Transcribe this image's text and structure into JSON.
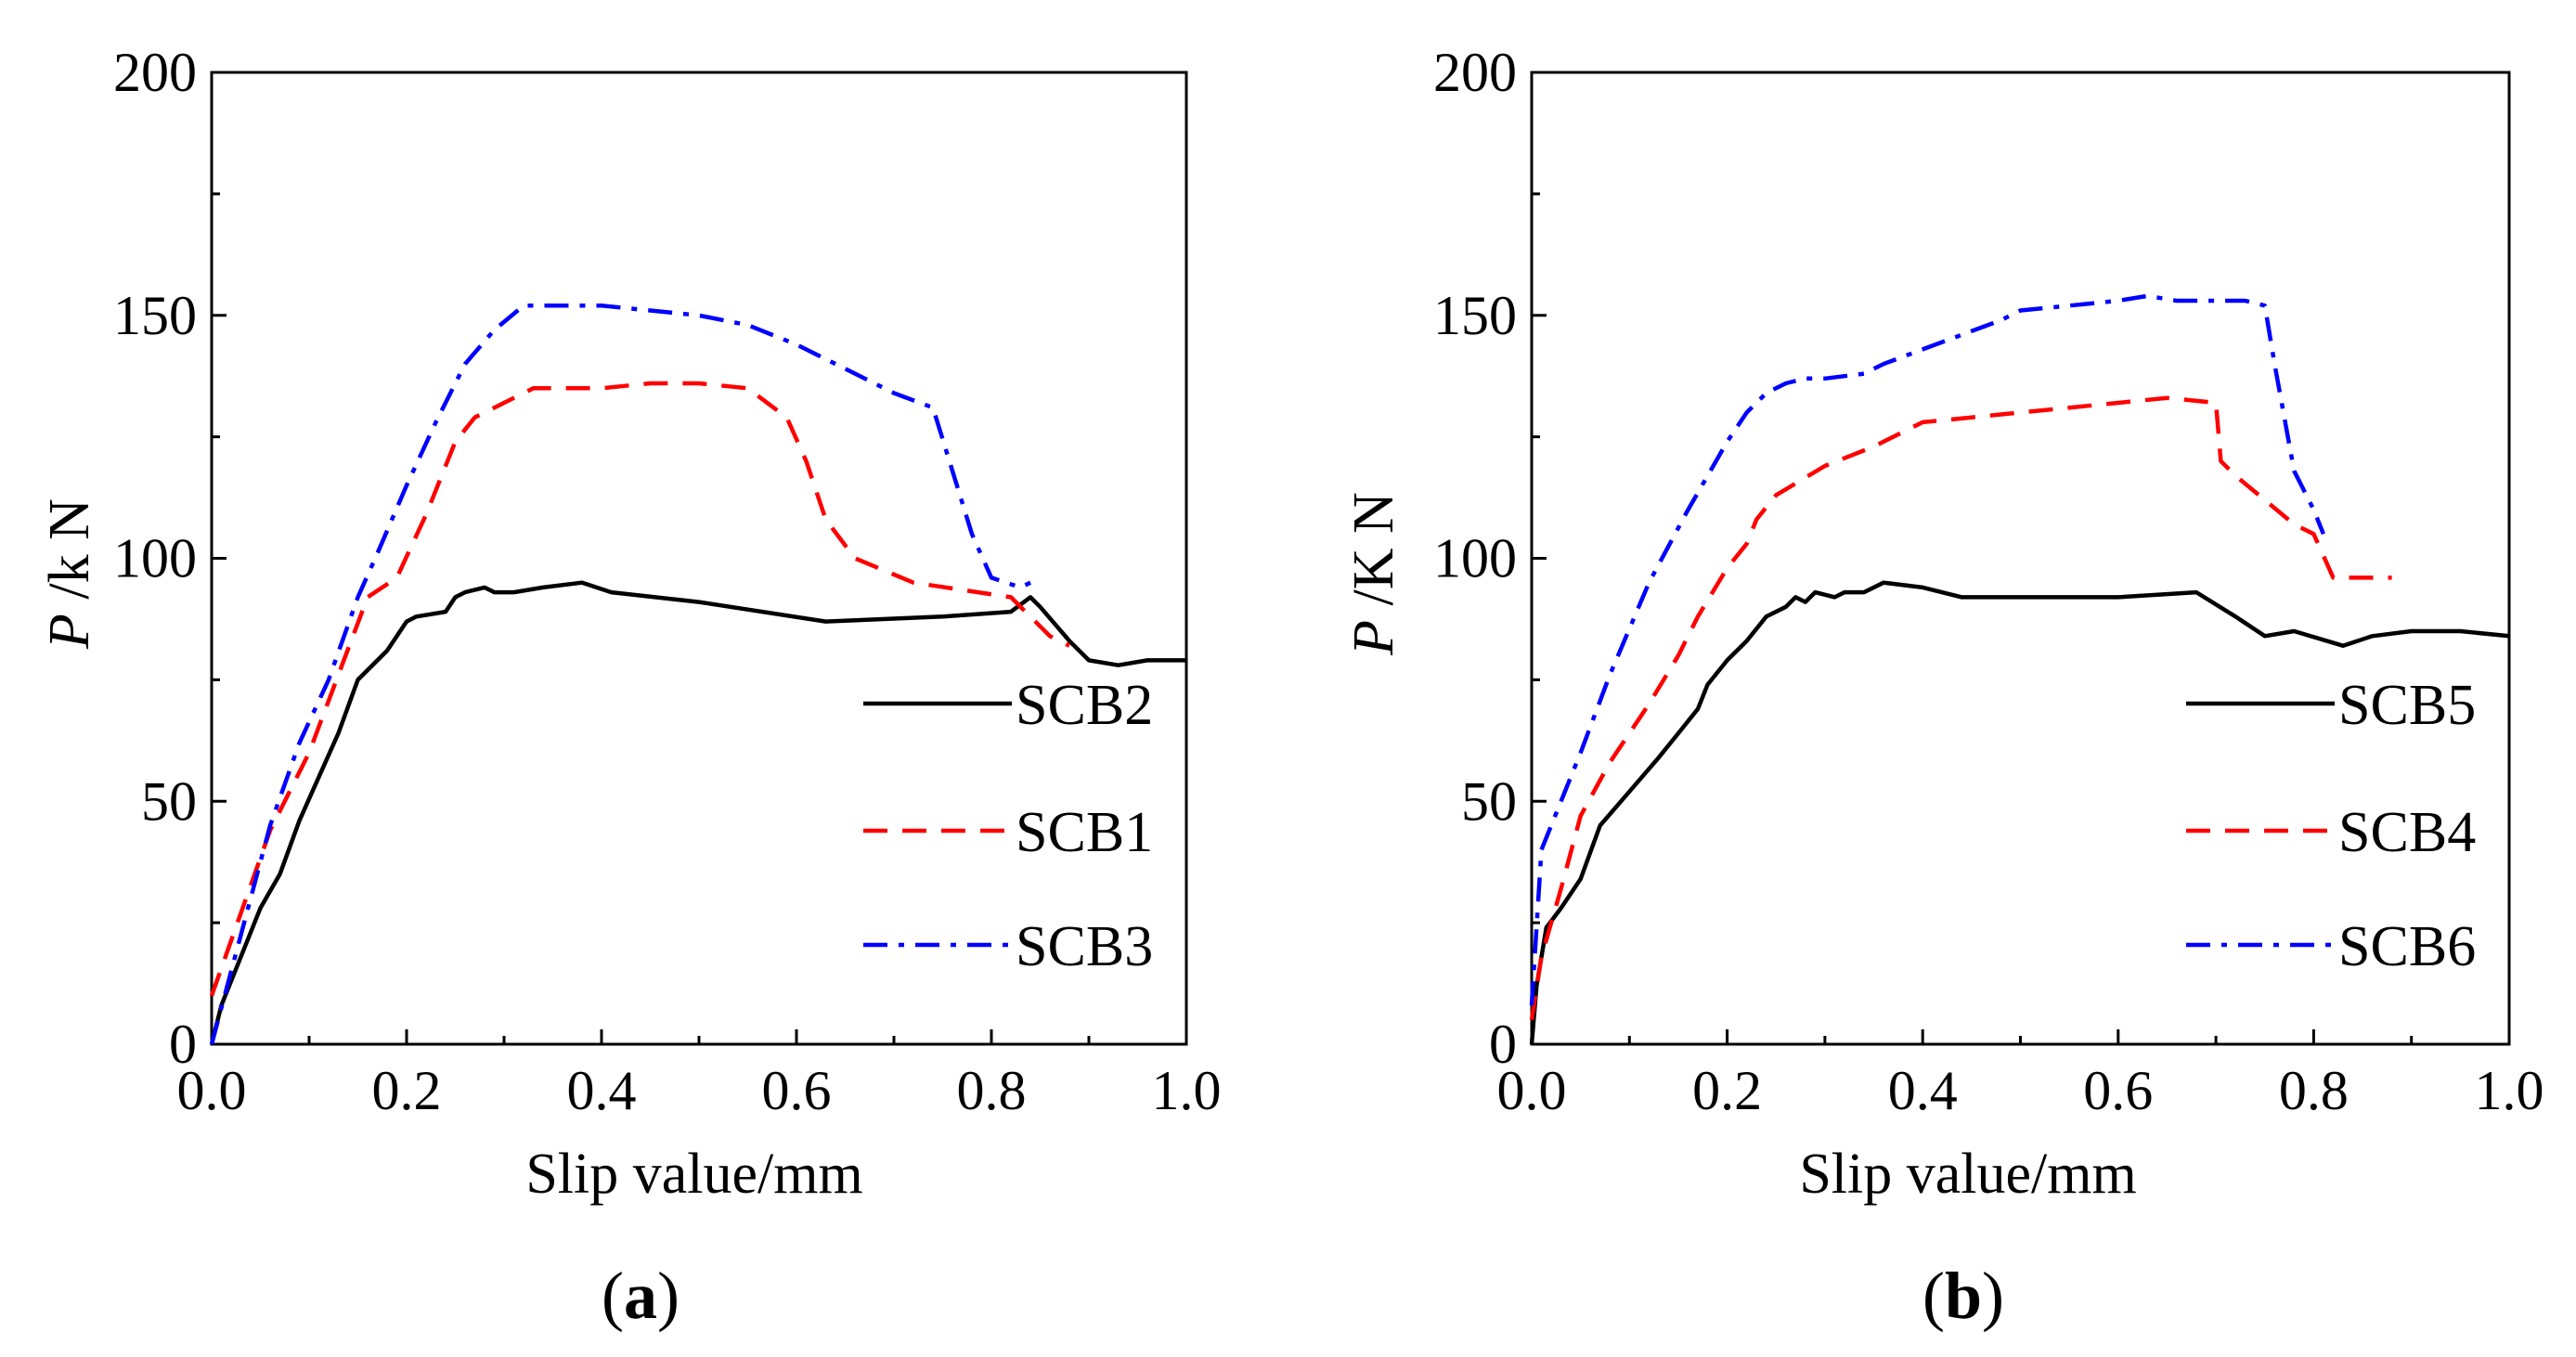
{
  "chart_data": [
    {
      "type": "line",
      "panel_label": "a",
      "xlabel": "Slip value/mm",
      "ylabel": {
        "italic": "P",
        "rest": " /k N"
      },
      "xlim": [
        0,
        1.0
      ],
      "ylim": [
        0,
        200
      ],
      "xticks": [
        "0.0",
        "0.2",
        "0.4",
        "0.6",
        "0.8",
        "1.0"
      ],
      "yticks": [
        "0",
        "50",
        "100",
        "150",
        "200"
      ],
      "legend_position": "lower-right",
      "series": [
        {
          "name": "SCB2",
          "color": "#000000",
          "style": "solid",
          "x": [
            0,
            0.01,
            0.03,
            0.05,
            0.07,
            0.09,
            0.11,
            0.13,
            0.15,
            0.18,
            0.2,
            0.21,
            0.24,
            0.25,
            0.26,
            0.28,
            0.29,
            0.31,
            0.34,
            0.38,
            0.41,
            0.5,
            0.63,
            0.75,
            0.82,
            0.84,
            0.85,
            0.88,
            0.9,
            0.93,
            0.96,
            1.0
          ],
          "y": [
            0,
            8,
            18,
            28,
            35,
            46,
            55,
            64,
            75,
            81,
            87,
            88,
            89,
            92,
            93,
            94,
            93,
            93,
            94,
            95,
            93,
            91,
            87,
            88,
            89,
            92,
            90,
            83,
            79,
            78,
            79,
            79
          ]
        },
        {
          "name": "SCB1",
          "color": "#ff0000",
          "style": "dashed",
          "x": [
            0,
            0.03,
            0.06,
            0.1,
            0.13,
            0.16,
            0.19,
            0.22,
            0.25,
            0.27,
            0.3,
            0.33,
            0.37,
            0.4,
            0.45,
            0.5,
            0.55,
            0.59,
            0.61,
            0.63,
            0.66,
            0.72,
            0.82,
            0.86,
            0.88
          ],
          "y": [
            10,
            27,
            44,
            60,
            76,
            92,
            96,
            109,
            124,
            129,
            132,
            135,
            135,
            135,
            136,
            136,
            135,
            129,
            120,
            108,
            100,
            95,
            92,
            84,
            82
          ]
        },
        {
          "name": "SCB3",
          "color": "#0000ff",
          "style": "dashdot",
          "x": [
            0,
            0.02,
            0.04,
            0.06,
            0.09,
            0.12,
            0.15,
            0.17,
            0.2,
            0.23,
            0.26,
            0.29,
            0.32,
            0.35,
            0.4,
            0.45,
            0.5,
            0.55,
            0.6,
            0.65,
            0.7,
            0.74,
            0.76,
            0.78,
            0.8,
            0.83,
            0.84
          ],
          "y": [
            0,
            15,
            30,
            45,
            62,
            75,
            92,
            101,
            115,
            128,
            140,
            147,
            152,
            152,
            152,
            151,
            150,
            148,
            144,
            139,
            134,
            131,
            118,
            105,
            96,
            94,
            95
          ]
        }
      ]
    },
    {
      "type": "line",
      "panel_label": "b",
      "xlabel": "Slip value/mm",
      "ylabel": {
        "italic": "P",
        "rest": " /K N"
      },
      "xlim": [
        0,
        1.0
      ],
      "ylim": [
        0,
        200
      ],
      "xticks": [
        "0.0",
        "0.2",
        "0.4",
        "0.6",
        "0.8",
        "1.0"
      ],
      "yticks": [
        "0",
        "50",
        "100",
        "150",
        "200"
      ],
      "legend_position": "lower-right",
      "series": [
        {
          "name": "SCB5",
          "color": "#000000",
          "style": "solid",
          "x": [
            0,
            0.005,
            0.015,
            0.03,
            0.05,
            0.07,
            0.1,
            0.13,
            0.15,
            0.17,
            0.18,
            0.2,
            0.22,
            0.24,
            0.26,
            0.27,
            0.28,
            0.29,
            0.31,
            0.32,
            0.34,
            0.36,
            0.4,
            0.44,
            0.5,
            0.6,
            0.68,
            0.72,
            0.75,
            0.78,
            0.83,
            0.86,
            0.9,
            0.95,
            1.0
          ],
          "y": [
            0,
            12,
            24,
            28,
            34,
            45,
            52,
            59,
            64,
            69,
            74,
            79,
            83,
            88,
            90,
            92,
            91,
            93,
            92,
            93,
            93,
            95,
            94,
            92,
            92,
            92,
            93,
            88,
            84,
            85,
            82,
            84,
            85,
            85,
            84
          ]
        },
        {
          "name": "SCB4",
          "color": "#ff0000",
          "style": "dashed",
          "x": [
            0,
            0.01,
            0.03,
            0.05,
            0.08,
            0.1,
            0.12,
            0.15,
            0.17,
            0.2,
            0.22,
            0.23,
            0.25,
            0.3,
            0.35,
            0.4,
            0.45,
            0.5,
            0.55,
            0.6,
            0.65,
            0.7,
            0.705,
            0.72,
            0.75,
            0.78,
            0.8,
            0.82,
            0.88
          ],
          "y": [
            5,
            18,
            32,
            47,
            58,
            64,
            70,
            80,
            88,
            98,
            103,
            108,
            113,
            119,
            123,
            128,
            129,
            130,
            131,
            132,
            133,
            132,
            120,
            117,
            112,
            107,
            105,
            96,
            96
          ]
        },
        {
          "name": "SCB6",
          "color": "#0000ff",
          "style": "dashdot",
          "x": [
            0,
            0.01,
            0.03,
            0.05,
            0.08,
            0.12,
            0.16,
            0.2,
            0.22,
            0.24,
            0.26,
            0.28,
            0.3,
            0.34,
            0.36,
            0.4,
            0.44,
            0.48,
            0.5,
            0.55,
            0.6,
            0.63,
            0.66,
            0.68,
            0.7,
            0.73,
            0.75,
            0.76,
            0.78,
            0.8,
            0.81
          ],
          "y": [
            8,
            40,
            50,
            60,
            76,
            95,
            110,
            124,
            130,
            134,
            136,
            137,
            137,
            138,
            140,
            143,
            146,
            149,
            151,
            152,
            153,
            154,
            153,
            153,
            153,
            153,
            152,
            140,
            118,
            110,
            105
          ]
        }
      ]
    }
  ]
}
